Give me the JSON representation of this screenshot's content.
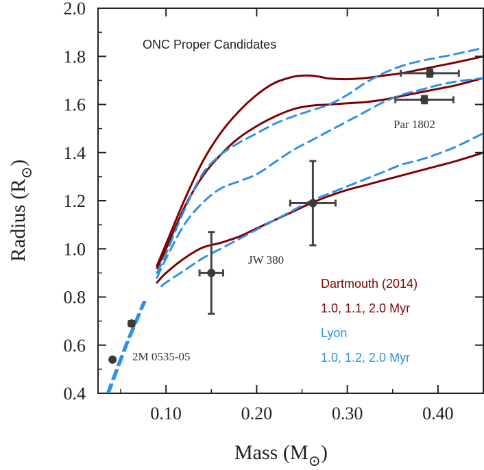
{
  "chart_data": {
    "type": "line",
    "title": "ONC Proper Candidates",
    "xlabel": "Mass (M",
    "xlabel_sub": "⊙",
    "xlabel_close": ")",
    "ylabel": "Radius (R",
    "ylabel_sub": "⊙",
    "ylabel_close": ")",
    "xlim": [
      0.025,
      0.45
    ],
    "ylim": [
      0.4,
      2.0
    ],
    "xticks": [
      0.1,
      0.2,
      0.3,
      0.4
    ],
    "xtick_labels": [
      "0.10",
      "0.20",
      "0.30",
      "0.40"
    ],
    "yticks": [
      0.4,
      0.6,
      0.8,
      1.0,
      1.2,
      1.4,
      1.6,
      1.8,
      2.0
    ],
    "ytick_labels": [
      "0.4",
      "0.6",
      "0.8",
      "1.0",
      "1.2",
      "1.4",
      "1.6",
      "1.8",
      "2.0"
    ],
    "series": [
      {
        "name": "Dartmouth 1.0 Myr",
        "group": "dartmouth",
        "style": "solid",
        "color": "#800000",
        "x": [
          0.09,
          0.1,
          0.12,
          0.14,
          0.16,
          0.18,
          0.2,
          0.22,
          0.24,
          0.25,
          0.26,
          0.27,
          0.28,
          0.3,
          0.32,
          0.34,
          0.36,
          0.38,
          0.4,
          0.42,
          0.45
        ],
        "y": [
          0.93,
          1.02,
          1.2,
          1.36,
          1.48,
          1.57,
          1.64,
          1.69,
          1.715,
          1.72,
          1.72,
          1.715,
          1.708,
          1.705,
          1.71,
          1.72,
          1.73,
          1.745,
          1.76,
          1.775,
          1.8
        ]
      },
      {
        "name": "Dartmouth 1.1 Myr",
        "group": "dartmouth",
        "style": "solid",
        "color": "#800000",
        "x": [
          0.09,
          0.1,
          0.12,
          0.14,
          0.16,
          0.18,
          0.2,
          0.22,
          0.24,
          0.26,
          0.28,
          0.3,
          0.32,
          0.34,
          0.36,
          0.38,
          0.4,
          0.42,
          0.45
        ],
        "y": [
          0.92,
          1.0,
          1.17,
          1.3,
          1.39,
          1.46,
          1.51,
          1.55,
          1.58,
          1.595,
          1.6,
          1.605,
          1.61,
          1.62,
          1.635,
          1.65,
          1.665,
          1.68,
          1.71
        ]
      },
      {
        "name": "Dartmouth 2.0 Myr",
        "group": "dartmouth",
        "style": "solid",
        "color": "#800000",
        "x": [
          0.09,
          0.1,
          0.12,
          0.14,
          0.16,
          0.18,
          0.2,
          0.22,
          0.24,
          0.26,
          0.28,
          0.3,
          0.32,
          0.34,
          0.36,
          0.38,
          0.4,
          0.42,
          0.45
        ],
        "y": [
          0.86,
          0.9,
          0.96,
          1.005,
          1.025,
          1.05,
          1.085,
          1.12,
          1.155,
          1.19,
          1.22,
          1.245,
          1.265,
          1.285,
          1.305,
          1.325,
          1.345,
          1.365,
          1.4
        ]
      },
      {
        "name": "Lyon 1.0 Myr",
        "group": "lyon",
        "style": "dashed",
        "color": "#2e90e8",
        "x": [
          0.09,
          0.1,
          0.12,
          0.14,
          0.16,
          0.18,
          0.2,
          0.22,
          0.24,
          0.26,
          0.28,
          0.3,
          0.32,
          0.34,
          0.36,
          0.38,
          0.4,
          0.42,
          0.45
        ],
        "y": [
          0.9,
          0.98,
          1.16,
          1.31,
          1.39,
          1.44,
          1.48,
          1.52,
          1.55,
          1.575,
          1.6,
          1.64,
          1.69,
          1.73,
          1.76,
          1.78,
          1.795,
          1.81,
          1.835
        ]
      },
      {
        "name": "Lyon 1.2 Myr",
        "group": "lyon",
        "style": "dashed",
        "color": "#2e90e8",
        "x": [
          0.09,
          0.1,
          0.12,
          0.14,
          0.16,
          0.18,
          0.2,
          0.22,
          0.24,
          0.26,
          0.28,
          0.3,
          0.32,
          0.34,
          0.36,
          0.38,
          0.4,
          0.42,
          0.45
        ],
        "y": [
          0.88,
          0.96,
          1.1,
          1.19,
          1.25,
          1.28,
          1.31,
          1.36,
          1.41,
          1.45,
          1.49,
          1.53,
          1.57,
          1.61,
          1.64,
          1.66,
          1.68,
          1.695,
          1.71
        ]
      },
      {
        "name": "Lyon 2.0 Myr",
        "group": "lyon",
        "style": "dashed",
        "color": "#2e90e8",
        "x": [
          0.095,
          0.1,
          0.12,
          0.14,
          0.16,
          0.18,
          0.2,
          0.22,
          0.24,
          0.26,
          0.28,
          0.3,
          0.32,
          0.34,
          0.36,
          0.38,
          0.4,
          0.42,
          0.45
        ],
        "y": [
          0.845,
          0.86,
          0.91,
          0.96,
          1.0,
          1.04,
          1.08,
          1.12,
          1.16,
          1.2,
          1.23,
          1.26,
          1.29,
          1.32,
          1.35,
          1.37,
          1.395,
          1.425,
          1.48
        ]
      },
      {
        "name": "Lyon low-mass",
        "group": "lyon",
        "style": "dashed",
        "color": "#2e90e8",
        "x": [
          0.035,
          0.045,
          0.055,
          0.065,
          0.075
        ],
        "y": [
          0.4,
          0.5,
          0.6,
          0.69,
          0.78
        ]
      },
      {
        "name": "Lyon low-mass 2",
        "group": "lyon",
        "style": "dashed",
        "color": "#2e90e8",
        "x": [
          0.037,
          0.047,
          0.057,
          0.067,
          0.077
        ],
        "y": [
          0.4,
          0.5,
          0.6,
          0.69,
          0.78
        ]
      }
    ],
    "points": [
      {
        "name": "2M 0535-05 a",
        "x": 0.041,
        "y": 0.54,
        "xerr": 0,
        "yerr": 0,
        "label": "2M 0535-05"
      },
      {
        "name": "2M 0535-05 b",
        "x": 0.062,
        "y": 0.69,
        "xerr": 0.003,
        "yerr": 0,
        "label": ""
      },
      {
        "name": "JW 380",
        "x": 0.15,
        "y": 0.9,
        "xerr": 0.013,
        "yerr": 0.17,
        "label": "JW 380"
      },
      {
        "name": "JW 380 B",
        "x": 0.262,
        "y": 1.19,
        "xerr": 0.025,
        "yerr": 0.175,
        "label": ""
      },
      {
        "name": "Par 1802 A",
        "x": 0.391,
        "y": 1.73,
        "xerr": 0.032,
        "yerr": 0.015,
        "label": ""
      },
      {
        "name": "Par 1802 B",
        "x": 0.385,
        "y": 1.62,
        "xerr": 0.032,
        "yerr": 0.015,
        "label": "Par 1802"
      }
    ],
    "legend": [
      {
        "text": "Dartmouth (2014)",
        "color": "#800000"
      },
      {
        "text": "1.0, 1.1, 2.0 Myr",
        "color": "#800000"
      },
      {
        "text": "Lyon",
        "color": "#2e90e8"
      },
      {
        "text": "1.0, 1.2, 2.0 Myr",
        "color": "#2e90e8"
      }
    ],
    "legend_position": "bottom-right",
    "grid": false
  }
}
